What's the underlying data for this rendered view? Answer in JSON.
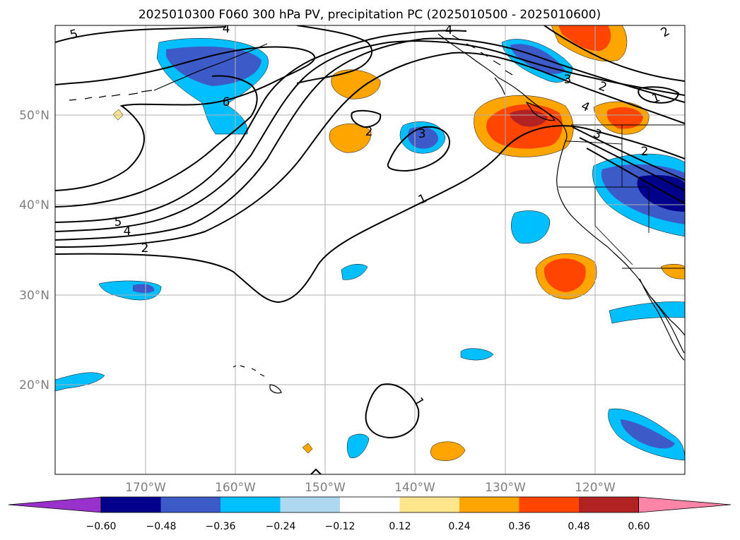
{
  "title": "2025010300 F060 300 hPa PV, precipitation PC (2025010500 - 2025010600)",
  "axes": {
    "lon_labels": [
      "170°W",
      "160°W",
      "150°W",
      "140°W",
      "130°W",
      "120°W"
    ],
    "lat_labels": [
      "50°N",
      "40°N",
      "30°N",
      "20°N"
    ]
  },
  "colorbar": {
    "ticks": [
      "−0.60",
      "−0.48",
      "−0.36",
      "−0.24",
      "−0.12",
      "0.12",
      "0.24",
      "0.36",
      "0.48",
      "0.60"
    ],
    "colors": [
      "#9932cc",
      "#00008b",
      "#3c5ac8",
      "#00bfff",
      "#add8f0",
      "#ffffff",
      "#ffe68c",
      "#ffa500",
      "#ff4500",
      "#b22222",
      "#ff85a8"
    ]
  },
  "contour_labels": [
    "5",
    "4",
    "6",
    "4",
    "2",
    "2",
    "3",
    "1",
    "5",
    "4",
    "2",
    "2",
    "1",
    "4",
    "3",
    "3",
    "2",
    "1"
  ]
}
